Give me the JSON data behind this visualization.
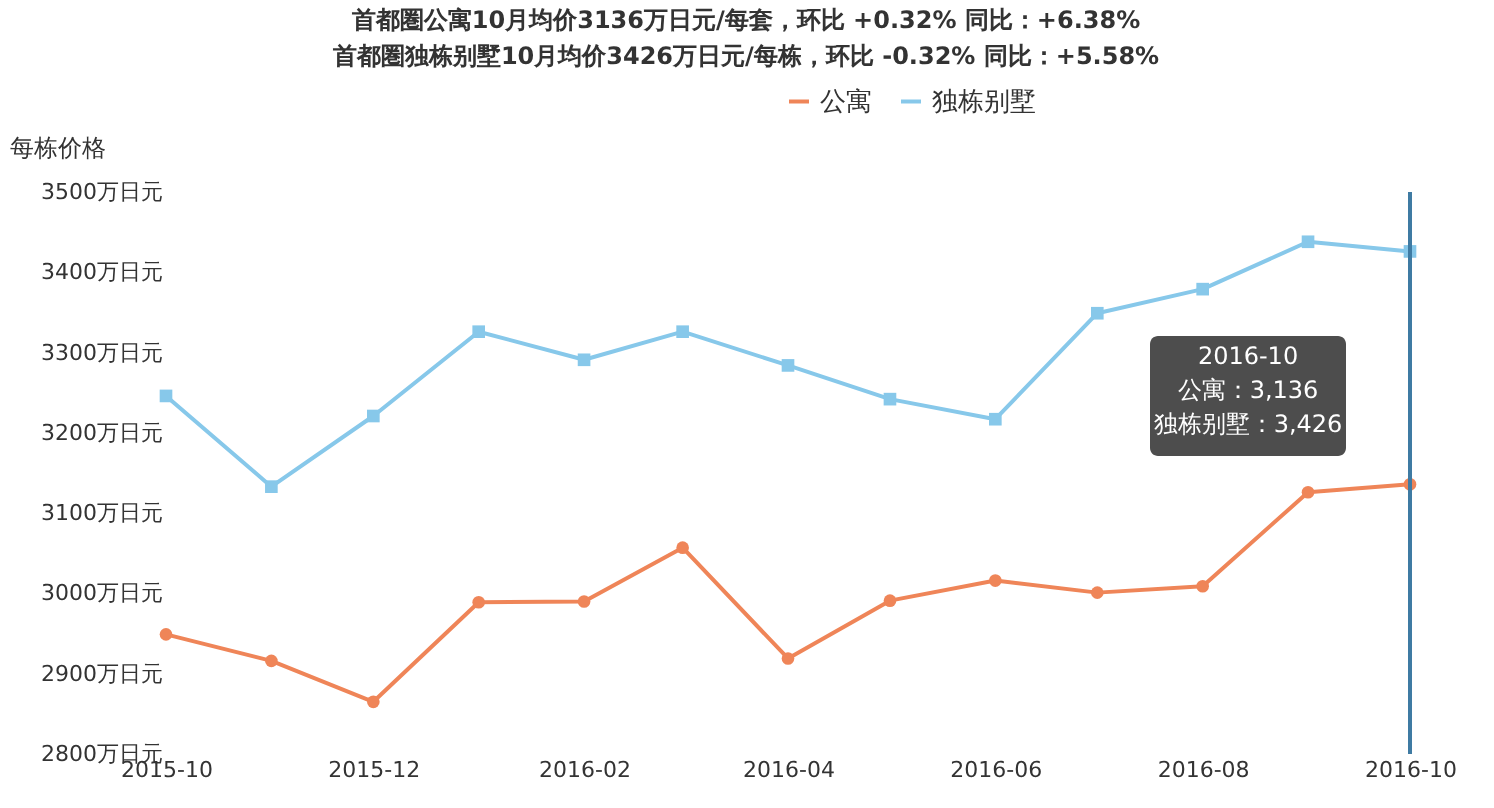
{
  "chart_data": {
    "type": "line",
    "title": "首都圏公寓10月均价3136万日元/每套，环比 +0.32% 同比：+6.38%",
    "subtitle": "首都圏独栋别墅10月均价3426万日元/每栋，环比 -0.32% 同比：+5.58%",
    "ylabel": "每栋价格",
    "x": [
      "2015-10",
      "2015-11",
      "2015-12",
      "2016-01",
      "2016-02",
      "2016-03",
      "2016-04",
      "2016-05",
      "2016-06",
      "2016-07",
      "2016-08",
      "2016-09",
      "2016-10"
    ],
    "series": [
      {
        "name": "公寓",
        "color": "#ef8558",
        "marker": "circle",
        "values": [
          2949,
          2916,
          2865,
          2989,
          2990,
          3057,
          2919,
          2991,
          3016,
          3001,
          3009,
          3126,
          3136
        ]
      },
      {
        "name": "独栋别墅",
        "color": "#87c8ea",
        "marker": "square",
        "values": [
          3246,
          3133,
          3221,
          3326,
          3291,
          3326,
          3284,
          3242,
          3217,
          3349,
          3379,
          3438,
          3426
        ]
      }
    ],
    "xlim": [
      "2015-10",
      "2016-10"
    ],
    "xticks": [
      "2015-10",
      "2015-12",
      "2016-02",
      "2016-04",
      "2016-06",
      "2016-08",
      "2016-10"
    ],
    "ylim": [
      2800,
      3500
    ],
    "yticks": [
      {
        "value": 2800,
        "label": "2800万日元"
      },
      {
        "value": 2900,
        "label": "2900万日元"
      },
      {
        "value": 3000,
        "label": "3000万日元"
      },
      {
        "value": 3100,
        "label": "3100万日元"
      },
      {
        "value": 3200,
        "label": "3200万日元"
      },
      {
        "value": 3300,
        "label": "3300万日元"
      },
      {
        "value": 3400,
        "label": "3400万日元"
      },
      {
        "value": 3500,
        "label": "3500万日元"
      }
    ],
    "ref_lines": [
      {
        "axis": "x",
        "value": "2016-10",
        "color": "#3f7ba3"
      }
    ],
    "annotations": [
      "2016-10\n公寓：3,136\n独栋别墅：3,426"
    ],
    "legend": "top",
    "grid": false
  }
}
